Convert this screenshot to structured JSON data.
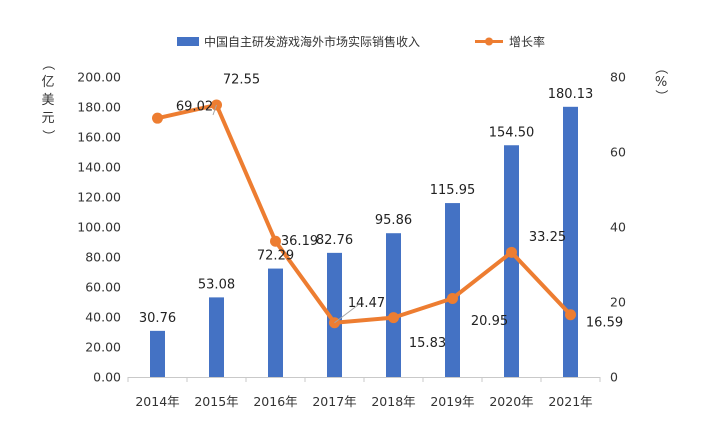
{
  "chart_data": {
    "type": "bar",
    "categories": [
      "2014年",
      "2015年",
      "2016年",
      "2017年",
      "2018年",
      "2019年",
      "2020年",
      "2021年"
    ],
    "series": [
      {
        "name": "中国自主研发游戏海外市场实际销售收入",
        "type": "bar",
        "axis": "left",
        "color": "#4472C4",
        "values": [
          30.76,
          53.08,
          72.29,
          82.76,
          95.86,
          115.95,
          154.5,
          180.13
        ],
        "labels": [
          "30.76",
          "53.08",
          "72.29",
          "82.76",
          "95.86",
          "115.95",
          "154.50",
          "180.13"
        ]
      },
      {
        "name": "增长率",
        "type": "line",
        "axis": "right",
        "color": "#ED7D31",
        "values": [
          69.02,
          72.55,
          36.19,
          14.47,
          15.83,
          20.95,
          33.25,
          16.59
        ],
        "labels": [
          "69.02",
          "72.55",
          "36.19",
          "14.47",
          "15.83",
          "20.95",
          "33.25",
          "16.59"
        ]
      }
    ],
    "y_left": {
      "label_chars": [
        "（",
        "亿",
        "美",
        "元",
        "）"
      ],
      "ylim": [
        0,
        200
      ],
      "ticks": [
        "0.00",
        "20.00",
        "40.00",
        "60.00",
        "80.00",
        "100.00",
        "120.00",
        "140.00",
        "160.00",
        "180.00",
        "200.00"
      ]
    },
    "y_right": {
      "label_chars": [
        "（",
        "%",
        "）"
      ],
      "ylim": [
        0,
        80
      ],
      "ticks": [
        "0",
        "20",
        "40",
        "60",
        "80"
      ]
    },
    "legend_position": "top-center",
    "grid": false
  }
}
